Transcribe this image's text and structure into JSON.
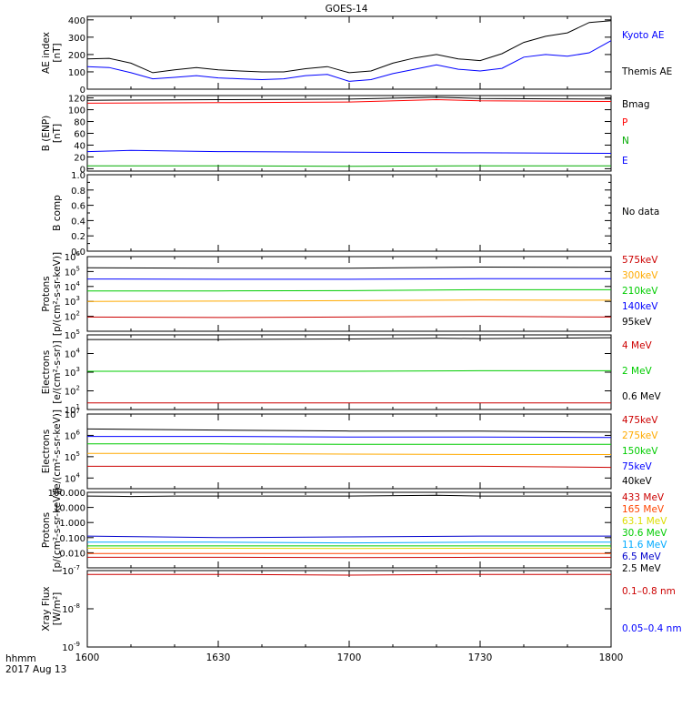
{
  "chart_data": {
    "title": "GOES-14",
    "type": "line",
    "x_axis": {
      "label_line1": "hhmm",
      "label_line2": "2017 Aug 13",
      "ticks": [
        {
          "x": 1600,
          "label": "1600"
        },
        {
          "x": 1630,
          "label": "1630"
        },
        {
          "x": 1700,
          "label": "1700"
        },
        {
          "x": 1730,
          "label": "1730"
        },
        {
          "x": 1800,
          "label": "1800"
        }
      ],
      "range": [
        1600,
        1800
      ]
    },
    "panels": [
      {
        "id": "ae",
        "ylabel": [
          "AE index",
          "[nT]"
        ],
        "scale": "linear",
        "ylim": [
          0,
          420
        ],
        "ticks": [
          [
            0,
            "0"
          ],
          [
            100,
            "100"
          ],
          [
            200,
            "200"
          ],
          [
            300,
            "300"
          ],
          [
            400,
            "400"
          ]
        ],
        "legend": [
          {
            "text": "Kyoto AE",
            "color": "#0000ff"
          },
          {
            "text": "Themis AE",
            "color": "#000000"
          }
        ],
        "series": [
          {
            "name": "Themis AE",
            "color": "#000000",
            "x": [
              1600,
              1605,
              1610,
              1615,
              1620,
              1625,
              1630,
              1635,
              1640,
              1645,
              1650,
              1655,
              1700,
              1705,
              1710,
              1715,
              1720,
              1725,
              1730,
              1735,
              1740,
              1745,
              1750,
              1755,
              1800
            ],
            "y": [
              175,
              178,
              150,
              95,
              112,
              125,
              112,
              105,
              100,
              100,
              118,
              130,
              95,
              105,
              150,
              180,
              200,
              175,
              165,
              205,
              270,
              305,
              325,
              385,
              395
            ]
          },
          {
            "name": "Kyoto AE",
            "color": "#0000ff",
            "x": [
              1600,
              1605,
              1610,
              1615,
              1620,
              1625,
              1630,
              1635,
              1640,
              1645,
              1650,
              1655,
              1700,
              1705,
              1710,
              1715,
              1720,
              1725,
              1730,
              1735,
              1740,
              1745,
              1750,
              1755,
              1800
            ],
            "y": [
              130,
              125,
              95,
              60,
              68,
              78,
              65,
              60,
              55,
              60,
              78,
              85,
              45,
              55,
              90,
              115,
              140,
              115,
              105,
              120,
              185,
              200,
              190,
              210,
              280
            ]
          }
        ]
      },
      {
        "id": "b",
        "ylabel": [
          "B (ENP)",
          "[nT]"
        ],
        "scale": "linear",
        "ylim": [
          -4,
          124
        ],
        "ticks": [
          [
            0,
            "0"
          ],
          [
            20,
            "20"
          ],
          [
            40,
            "40"
          ],
          [
            60,
            "60"
          ],
          [
            80,
            "80"
          ],
          [
            100,
            "100"
          ],
          [
            120,
            "120"
          ]
        ],
        "legend": [
          {
            "text": "Bmag",
            "color": "#000000"
          },
          {
            "text": "P",
            "color": "#ff0000"
          },
          {
            "text": "N",
            "color": "#00aa00"
          },
          {
            "text": "E",
            "color": "#0000ff"
          }
        ],
        "series": [
          {
            "name": "Bmag",
            "color": "#000000",
            "x": [
              1600,
              1630,
              1700,
              1720,
              1730,
              1800
            ],
            "y": [
              116,
              117,
              118,
              121,
              119,
              118
            ]
          },
          {
            "name": "P",
            "color": "#ff0000",
            "x": [
              1600,
              1630,
              1700,
              1720,
              1730,
              1800
            ],
            "y": [
              111,
              112,
              113,
              117,
              115,
              114
            ]
          },
          {
            "name": "E",
            "color": "#0000ff",
            "x": [
              1600,
              1610,
              1630,
              1700,
              1730,
              1800
            ],
            "y": [
              29,
              31,
              29,
              28,
              27,
              26
            ]
          },
          {
            "name": "N",
            "color": "#00aa00",
            "x": [
              1600,
              1630,
              1700,
              1730,
              1800
            ],
            "y": [
              5,
              5,
              4,
              5,
              5
            ]
          }
        ]
      },
      {
        "id": "bcomp",
        "ylabel": [
          "B comp"
        ],
        "scale": "linear",
        "ylim": [
          0,
          1
        ],
        "ticks": [
          [
            0,
            "0.0"
          ],
          [
            0.2,
            "0.2"
          ],
          [
            0.4,
            "0.4"
          ],
          [
            0.6,
            "0.6"
          ],
          [
            0.8,
            "0.8"
          ],
          [
            1.0,
            "1.0"
          ]
        ],
        "minor_ticks": [
          0.1,
          0.3,
          0.5,
          0.7,
          0.9
        ],
        "legend": [
          {
            "text": "No data",
            "color": "#000000"
          }
        ],
        "series": []
      },
      {
        "id": "protons_low",
        "ylabel": [
          "Protons",
          "[p/(cm²-s-sr-keV)]"
        ],
        "scale": "log",
        "ylim": [
          1,
          6
        ],
        "ticks": [
          [
            2,
            "10",
            "2"
          ],
          [
            3,
            "10",
            "3"
          ],
          [
            4,
            "10",
            "4"
          ],
          [
            5,
            "10",
            "5"
          ],
          [
            6,
            "10",
            "6"
          ]
        ],
        "legend": [
          {
            "text": "575keV",
            "color": "#cc0000"
          },
          {
            "text": "300keV",
            "color": "#ffaa00"
          },
          {
            "text": "210keV",
            "color": "#00cc00"
          },
          {
            "text": "140keV",
            "color": "#0000ff"
          },
          {
            "text": "95keV",
            "color": "#000000"
          }
        ],
        "series": [
          {
            "name": "95keV",
            "color": "#000000",
            "x": [
              1600,
              1630,
              1700,
              1730,
              1800
            ],
            "y": [
              5.25,
              5.22,
              5.22,
              5.3,
              5.28
            ]
          },
          {
            "name": "140keV",
            "color": "#0000ff",
            "x": [
              1600,
              1630,
              1700,
              1730,
              1800
            ],
            "y": [
              4.5,
              4.48,
              4.48,
              4.52,
              4.52
            ]
          },
          {
            "name": "210keV",
            "color": "#00cc00",
            "x": [
              1600,
              1630,
              1700,
              1730,
              1800
            ],
            "y": [
              3.7,
              3.7,
              3.72,
              3.78,
              3.78
            ]
          },
          {
            "name": "300keV",
            "color": "#ffaa00",
            "x": [
              1600,
              1630,
              1700,
              1730,
              1800
            ],
            "y": [
              3.0,
              3.02,
              3.05,
              3.1,
              3.08
            ]
          },
          {
            "name": "575keV",
            "color": "#cc0000",
            "x": [
              1600,
              1630,
              1700,
              1730,
              1800
            ],
            "y": [
              1.95,
              1.92,
              1.95,
              2.0,
              1.95
            ]
          }
        ]
      },
      {
        "id": "electrons_mev",
        "ylabel": [
          "Electrons",
          "[e/(cm²-s-sr)]"
        ],
        "scale": "log",
        "ylim": [
          1,
          5
        ],
        "ticks": [
          [
            1,
            "10",
            "1"
          ],
          [
            2,
            "10",
            "2"
          ],
          [
            3,
            "10",
            "3"
          ],
          [
            4,
            "10",
            "4"
          ],
          [
            5,
            "10",
            "5"
          ]
        ],
        "legend": [
          {
            "text": "4 MeV",
            "color": "#cc0000"
          },
          {
            "text": "2 MeV",
            "color": "#00cc00"
          },
          {
            "text": "0.6 MeV",
            "color": "#000000"
          }
        ],
        "series": [
          {
            "name": "0.6 MeV",
            "color": "#000000",
            "x": [
              1600,
              1630,
              1700,
              1720,
              1730,
              1800
            ],
            "y": [
              4.75,
              4.75,
              4.78,
              4.82,
              4.8,
              4.85
            ]
          },
          {
            "name": "2 MeV",
            "color": "#00cc00",
            "x": [
              1600,
              1630,
              1700,
              1730,
              1800
            ],
            "y": [
              3.05,
              3.05,
              3.05,
              3.08,
              3.08
            ]
          },
          {
            "name": "4 MeV",
            "color": "#cc0000",
            "x": [
              1600,
              1630,
              1700,
              1730,
              1800
            ],
            "y": [
              1.35,
              1.35,
              1.35,
              1.35,
              1.35
            ]
          }
        ]
      },
      {
        "id": "electrons_kev",
        "ylabel": [
          "Electrons",
          "[e/(cm²-s-sr-keV)]"
        ],
        "scale": "log",
        "ylim": [
          3.5,
          7
        ],
        "ticks": [
          [
            4,
            "10",
            "4"
          ],
          [
            5,
            "10",
            "5"
          ],
          [
            6,
            "10",
            "6"
          ],
          [
            7,
            "10",
            "7"
          ]
        ],
        "legend": [
          {
            "text": "475keV",
            "color": "#cc0000"
          },
          {
            "text": "275keV",
            "color": "#ffaa00"
          },
          {
            "text": "150keV",
            "color": "#00cc00"
          },
          {
            "text": "75keV",
            "color": "#0000ff"
          },
          {
            "text": "40keV",
            "color": "#000000"
          }
        ],
        "series": [
          {
            "name": "40keV",
            "color": "#000000",
            "x": [
              1600,
              1630,
              1700,
              1730,
              1800
            ],
            "y": [
              6.3,
              6.25,
              6.2,
              6.2,
              6.15
            ]
          },
          {
            "name": "75keV",
            "color": "#0000ff",
            "x": [
              1600,
              1630,
              1700,
              1730,
              1800
            ],
            "y": [
              5.95,
              5.95,
              5.92,
              5.92,
              5.9
            ]
          },
          {
            "name": "150keV",
            "color": "#00cc00",
            "x": [
              1600,
              1630,
              1700,
              1730,
              1800
            ],
            "y": [
              5.6,
              5.6,
              5.58,
              5.58,
              5.58
            ]
          },
          {
            "name": "275keV",
            "color": "#ffaa00",
            "x": [
              1600,
              1630,
              1700,
              1730,
              1800
            ],
            "y": [
              5.15,
              5.15,
              5.12,
              5.1,
              5.1
            ]
          },
          {
            "name": "475keV",
            "color": "#cc0000",
            "x": [
              1600,
              1630,
              1700,
              1730,
              1800
            ],
            "y": [
              4.55,
              4.55,
              4.55,
              4.55,
              4.5
            ]
          }
        ]
      },
      {
        "id": "protons_mev",
        "ylabel": [
          "Protons",
          "[p/(cm²-s-sr-keV)]"
        ],
        "scale": "log",
        "ylim": [
          -3,
          2
        ],
        "ticks": [
          [
            -2,
            "0.010"
          ],
          [
            -1,
            "0.100"
          ],
          [
            0,
            "1.000"
          ],
          [
            1,
            "10.000"
          ],
          [
            2,
            "100.000"
          ]
        ],
        "legend": [
          {
            "text": "433 MeV",
            "color": "#cc0000"
          },
          {
            "text": "165 MeV",
            "color": "#ff4400"
          },
          {
            "text": "63.1 MeV",
            "color": "#dddd00"
          },
          {
            "text": "30.6 MeV",
            "color": "#00cc00"
          },
          {
            "text": "11.6 MeV",
            "color": "#00aaff"
          },
          {
            "text": "6.5 MeV",
            "color": "#0000cc"
          },
          {
            "text": "2.5 MeV",
            "color": "#000000"
          }
        ],
        "series": [
          {
            "name": "2.5 MeV",
            "color": "#000000",
            "x": [
              1600,
              1610,
              1620,
              1630,
              1700,
              1720,
              1730,
              1800
            ],
            "y": [
              1.75,
              1.72,
              1.75,
              1.75,
              1.75,
              1.8,
              1.75,
              1.75
            ]
          },
          {
            "name": "6.5 MeV",
            "color": "#0000cc",
            "x": [
              1600,
              1630,
              1700,
              1730,
              1800
            ],
            "y": [
              -0.9,
              -1.0,
              -0.95,
              -0.9,
              -0.9
            ]
          },
          {
            "name": "11.6 MeV",
            "color": "#00aaff",
            "x": [
              1600,
              1630,
              1700,
              1730,
              1800
            ],
            "y": [
              -1.3,
              -1.3,
              -1.35,
              -1.3,
              -1.3
            ]
          },
          {
            "name": "30.6 MeV",
            "color": "#00cc00",
            "x": [
              1600,
              1630,
              1700,
              1730,
              1800
            ],
            "y": [
              -1.55,
              -1.55,
              -1.55,
              -1.55,
              -1.55
            ]
          },
          {
            "name": "63.1 MeV",
            "color": "#dddd00",
            "x": [
              1600,
              1630,
              1700,
              1730,
              1800
            ],
            "y": [
              -1.7,
              -1.7,
              -1.72,
              -1.7,
              -1.7
            ]
          },
          {
            "name": "165 MeV",
            "color": "#ff4400",
            "x": [
              1600,
              1630,
              1700,
              1730,
              1800
            ],
            "y": [
              -2.05,
              -2.05,
              -2.05,
              -2.05,
              -2.05
            ]
          },
          {
            "name": "433 MeV",
            "color": "#cc0000",
            "x": [
              1600,
              1630,
              1700,
              1730,
              1800
            ],
            "y": [
              -2.3,
              -2.3,
              -2.32,
              -2.3,
              -2.3
            ]
          }
        ]
      },
      {
        "id": "xray",
        "ylabel": [
          "Xray Flux",
          "[W/m²]"
        ],
        "scale": "log",
        "ylim": [
          -9,
          -7
        ],
        "ticks": [
          [
            -9,
            "10",
            "-9"
          ],
          [
            -8,
            "10",
            "-8"
          ],
          [
            -7,
            "10",
            "-7"
          ]
        ],
        "legend": [
          {
            "text": "0.1–0.8 nm",
            "color": "#cc0000"
          },
          {
            "text": "0.05–0.4 nm",
            "color": "#0000ff"
          }
        ],
        "series": [
          {
            "name": "0.1–0.8 nm",
            "color": "#cc0000",
            "x": [
              1600,
              1630,
              1700,
              1730,
              1800
            ],
            "y": [
              -7.1,
              -7.1,
              -7.12,
              -7.1,
              -7.1
            ]
          }
        ]
      }
    ]
  }
}
